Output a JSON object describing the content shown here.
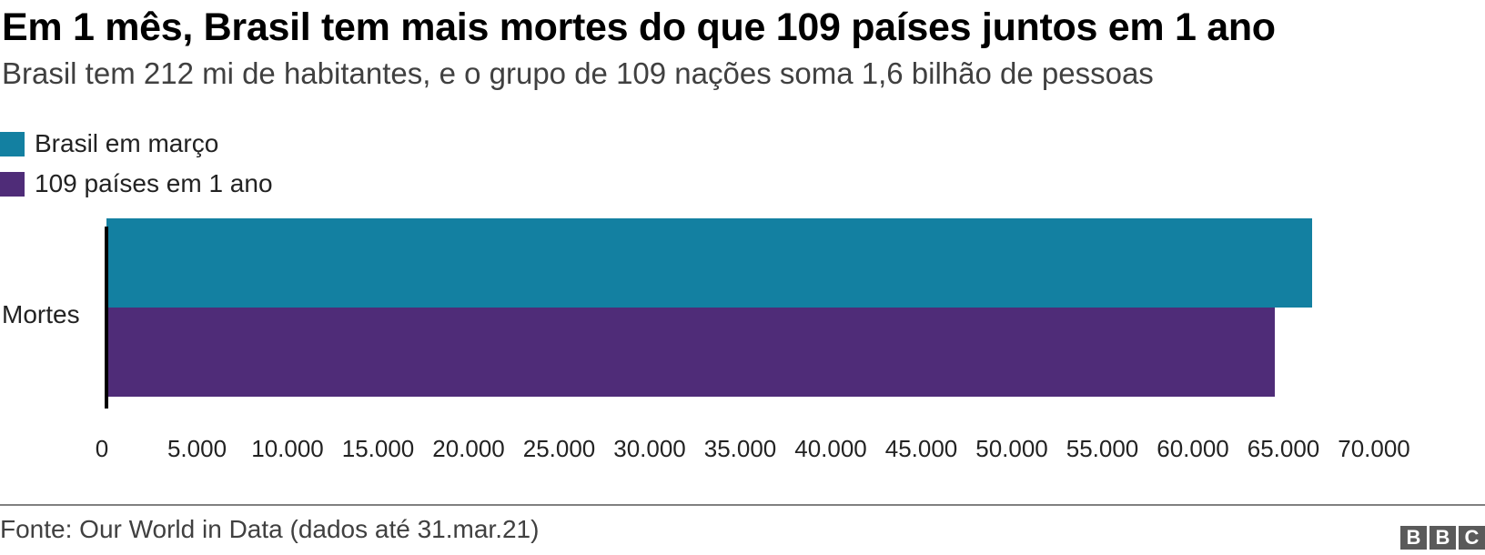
{
  "header": {
    "title": "Em 1 mês, Brasil tem mais mortes do que 109 países juntos em 1 ano",
    "subtitle": "Brasil tem 212 mi de habitantes, e o grupo de 109 nações soma 1,6 bilhão de pessoas"
  },
  "legend": [
    {
      "label": "Brasil em março",
      "color": "#1380a1"
    },
    {
      "label": "109 países em 1 ano",
      "color": "#4f2c78"
    }
  ],
  "footer": {
    "source": "Fonte: Our World in Data (dados até 31.mar.21)",
    "logo": [
      "B",
      "B",
      "C"
    ]
  },
  "chart_data": {
    "type": "bar",
    "orientation": "horizontal",
    "title": "Em 1 mês, Brasil tem mais mortes do que 109 países juntos em 1 ano",
    "subtitle": "Brasil tem 212 mi de habitantes, e o grupo de 109 nações soma 1,6 bilhão de pessoas",
    "categories": [
      "Mortes"
    ],
    "series": [
      {
        "name": "Brasil em março",
        "values": [
          66600
        ],
        "color": "#1380a1"
      },
      {
        "name": "109 países em 1 ano",
        "values": [
          64500
        ],
        "color": "#4f2c78"
      }
    ],
    "xlabel": "",
    "ylabel": "",
    "xlim": [
      0,
      70000
    ],
    "xticks": [
      "0",
      "5.000",
      "10.000",
      "15.000",
      "20.000",
      "25.000",
      "30.000",
      "35.000",
      "40.000",
      "45.000",
      "50.000",
      "55.000",
      "60.000",
      "65.000",
      "70.000"
    ],
    "grid": false,
    "legend_position": "top-left",
    "source": "Fonte: Our World in Data (dados até 31.mar.21)"
  }
}
